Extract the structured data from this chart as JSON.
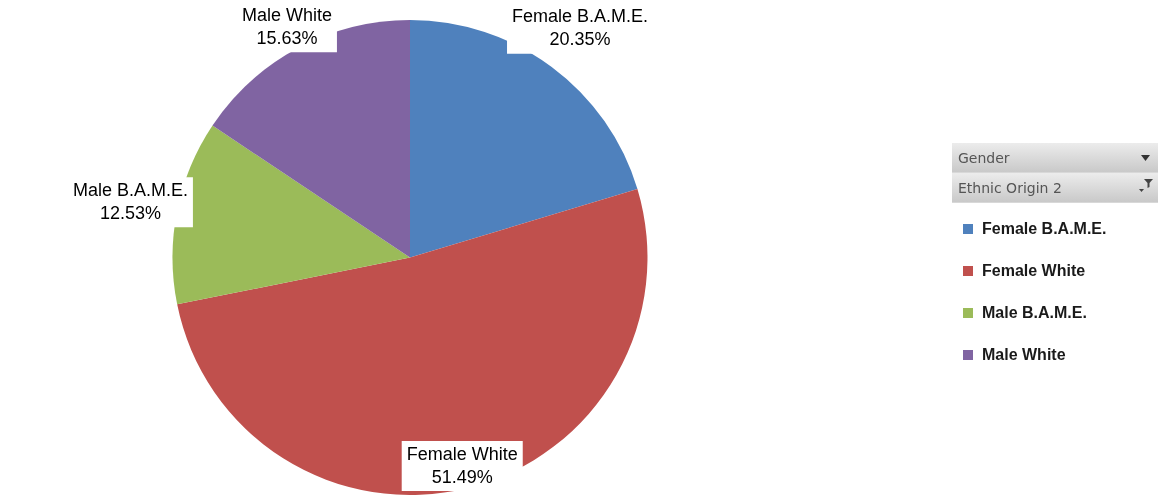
{
  "chart_data": {
    "type": "pie",
    "categories": [
      "Female B.A.M.E.",
      "Female White",
      "Male B.A.M.E.",
      "Male White"
    ],
    "values": [
      20.35,
      51.49,
      12.53,
      15.63
    ],
    "colors": [
      "#4f81bd",
      "#c0504d",
      "#9bbb59",
      "#8064a2"
    ],
    "value_labels": [
      "20.35%",
      "51.49%",
      "12.53%",
      "15.63%"
    ],
    "legend": "right",
    "annotations": [
      "Gender",
      "Ethnic Origin 2"
    ]
  }
}
